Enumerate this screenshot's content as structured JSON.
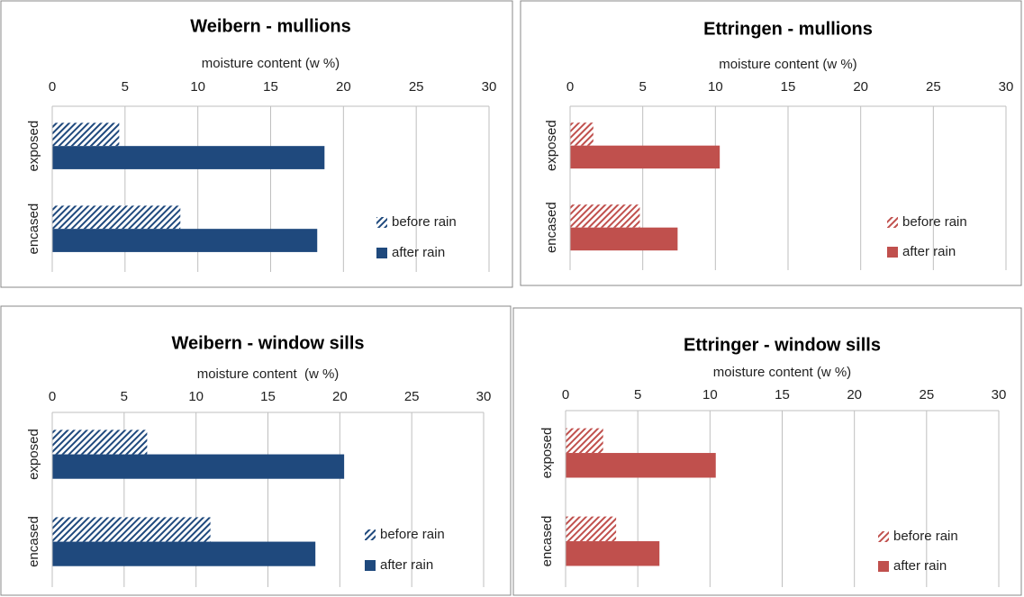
{
  "chart_data": [
    {
      "type": "bar",
      "orientation": "horizontal",
      "title": "Weibern - mullions",
      "xlabel": "moisture content (w %)",
      "categories": [
        "exposed",
        "encased"
      ],
      "xlim": [
        0,
        30
      ],
      "xticks": [
        0,
        5,
        10,
        15,
        20,
        25,
        30
      ],
      "grid": true,
      "legend": "lower right",
      "series": [
        {
          "name": "before rain",
          "color": "#1f497d",
          "pattern": "hatch",
          "values": [
            4.6,
            8.8
          ]
        },
        {
          "name": "after rain",
          "color": "#1f497d",
          "pattern": "solid",
          "values": [
            18.7,
            18.2
          ]
        }
      ]
    },
    {
      "type": "bar",
      "orientation": "horizontal",
      "title": "Ettringen - mullions",
      "xlabel": "moisture content (w %)",
      "categories": [
        "exposed",
        "encased"
      ],
      "xlim": [
        0,
        30
      ],
      "xticks": [
        0,
        5,
        10,
        15,
        20,
        25,
        30
      ],
      "grid": true,
      "legend": "lower right",
      "series": [
        {
          "name": "before rain",
          "color": "#c0504d",
          "pattern": "hatch",
          "values": [
            1.6,
            4.8
          ]
        },
        {
          "name": "after rain",
          "color": "#c0504d",
          "pattern": "solid",
          "values": [
            10.3,
            7.4
          ]
        }
      ]
    },
    {
      "type": "bar",
      "orientation": "horizontal",
      "title": "Weibern - window sills",
      "xlabel": "moisture content  (w %)",
      "categories": [
        "exposed",
        "encased"
      ],
      "xlim": [
        0,
        30
      ],
      "xticks": [
        0,
        5,
        10,
        15,
        20,
        25,
        30
      ],
      "grid": true,
      "legend": "lower right",
      "series": [
        {
          "name": "before rain",
          "color": "#1f497d",
          "pattern": "hatch",
          "values": [
            6.6,
            11.0
          ]
        },
        {
          "name": "after rain",
          "color": "#1f497d",
          "pattern": "solid",
          "values": [
            20.3,
            18.3
          ]
        }
      ]
    },
    {
      "type": "bar",
      "orientation": "horizontal",
      "title": "Ettringer - window sills",
      "xlabel": "moisture content (w %)",
      "categories": [
        "exposed",
        "encased"
      ],
      "xlim": [
        0,
        30
      ],
      "xticks": [
        0,
        5,
        10,
        15,
        20,
        25,
        30
      ],
      "grid": true,
      "legend": "lower right",
      "series": [
        {
          "name": "before rain",
          "color": "#c0504d",
          "pattern": "hatch",
          "values": [
            2.6,
            3.5
          ]
        },
        {
          "name": "after rain",
          "color": "#c0504d",
          "pattern": "solid",
          "values": [
            10.4,
            6.5
          ]
        }
      ]
    }
  ]
}
